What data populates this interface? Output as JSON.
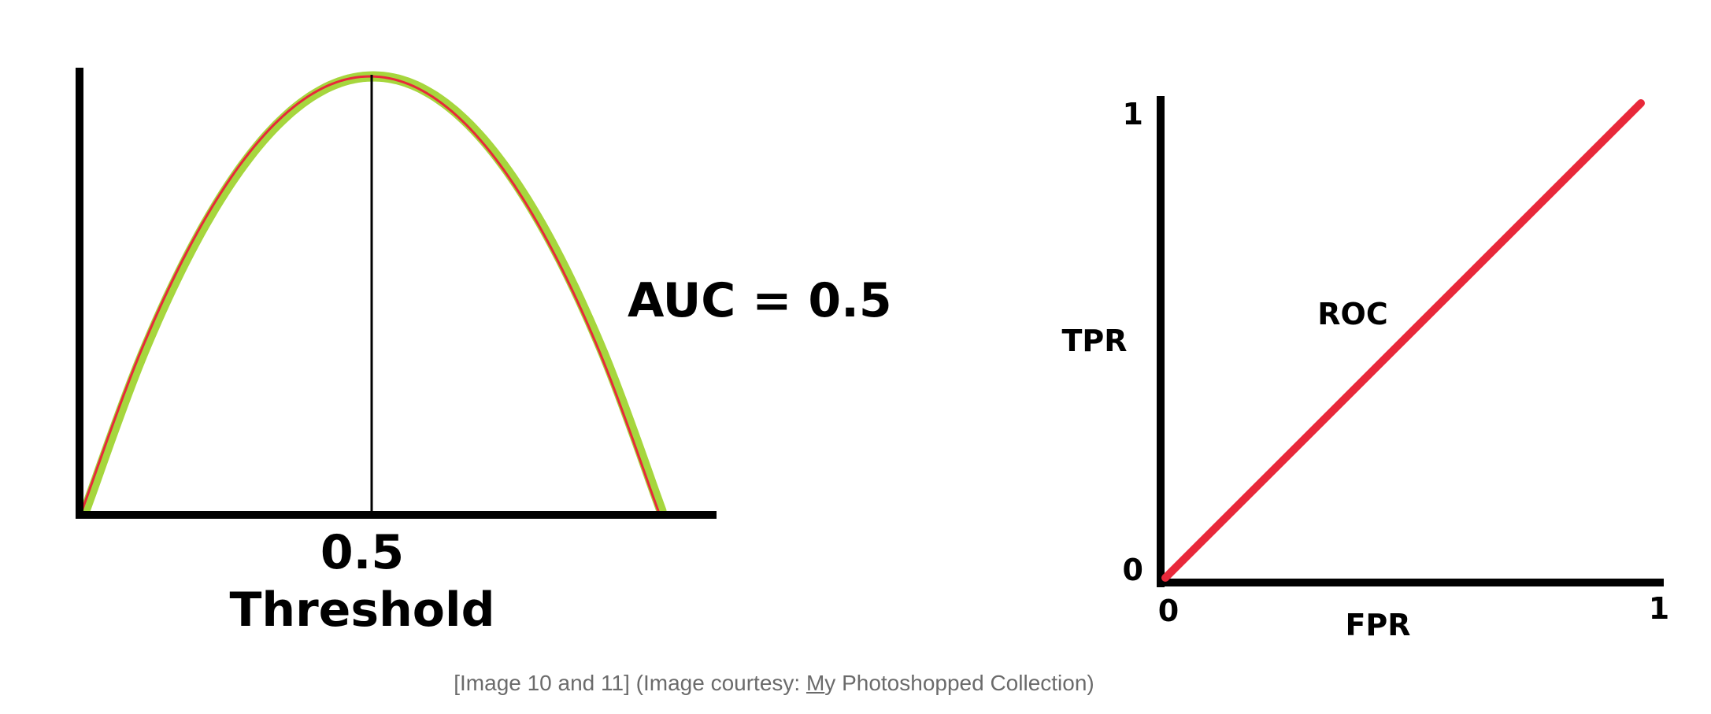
{
  "caption": {
    "prefix": "[Image 10 and 11] (Image courtesy: ",
    "link_first": "M",
    "link_rest": "y Photoshopped Collection)"
  },
  "chart_data": [
    {
      "type": "line",
      "title": "",
      "xlabel": "Threshold",
      "ylabel": "",
      "x_ticks": [
        "0.5"
      ],
      "xlim": [
        0,
        1.1
      ],
      "ylim": [
        0,
        1
      ],
      "annotation": "AUC = 0.5",
      "series": [
        {
          "color": "#a6d63d",
          "x": [
            0,
            0.1,
            0.2,
            0.3,
            0.4,
            0.5,
            0.6,
            0.7,
            0.8,
            0.9,
            1.0
          ],
          "values": [
            0,
            0.36,
            0.64,
            0.84,
            0.96,
            1.0,
            0.96,
            0.84,
            0.64,
            0.36,
            0
          ]
        },
        {
          "color": "#e8283a",
          "x": [
            0,
            0.1,
            0.2,
            0.3,
            0.4,
            0.5,
            0.6,
            0.7,
            0.8,
            0.9,
            1.0
          ],
          "values": [
            0,
            0.36,
            0.64,
            0.84,
            0.96,
            1.0,
            0.96,
            0.84,
            0.64,
            0.36,
            0
          ]
        }
      ],
      "reference_line": {
        "x": 0.5,
        "color": "#000000"
      },
      "grid": false
    },
    {
      "type": "line",
      "title": "",
      "xlabel": "FPR",
      "ylabel": "TPR",
      "x_ticks": [
        "0",
        "1"
      ],
      "y_ticks": [
        "0",
        "1"
      ],
      "xlim": [
        0,
        1.04
      ],
      "ylim": [
        0,
        1.04
      ],
      "annotation": "ROC",
      "series": [
        {
          "color": "#e8283a",
          "x": [
            0,
            1
          ],
          "values": [
            0,
            1
          ]
        }
      ],
      "grid": false
    }
  ]
}
